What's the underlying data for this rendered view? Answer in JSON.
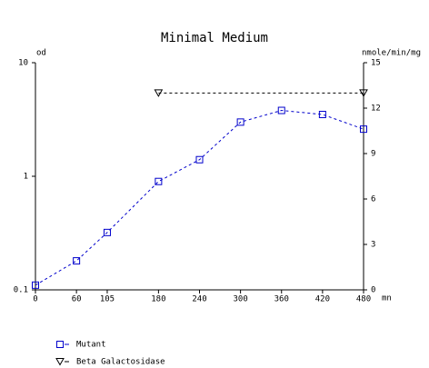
{
  "chart_data": {
    "type": "line",
    "title": "Minimal Medium",
    "y_label": "od",
    "y2_label": "nmole/min/mg",
    "x_label": "mn",
    "xlim": [
      0,
      480
    ],
    "xticks": [
      0,
      60,
      105,
      180,
      240,
      300,
      360,
      420,
      480
    ],
    "ylim": [
      0.1,
      10
    ],
    "yticks": [
      0.1,
      1,
      10
    ],
    "ylog": true,
    "y2lim": [
      0,
      15
    ],
    "y2ticks": [
      0,
      3,
      6,
      9,
      12,
      15
    ],
    "series": [
      {
        "name": "Mutant",
        "color": "#0000cc",
        "marker": "square",
        "axis": "y",
        "x": [
          0,
          60,
          105,
          180,
          240,
          300,
          360,
          420,
          480
        ],
        "values": [
          0.11,
          0.18,
          0.32,
          0.9,
          1.4,
          3.0,
          3.8,
          3.5,
          2.6
        ]
      },
      {
        "name": "Beta Galactosidase",
        "color": "#000000",
        "marker": "triangle-down",
        "axis": "y2",
        "x": [
          180,
          480
        ],
        "values": [
          13,
          13
        ]
      }
    ]
  }
}
